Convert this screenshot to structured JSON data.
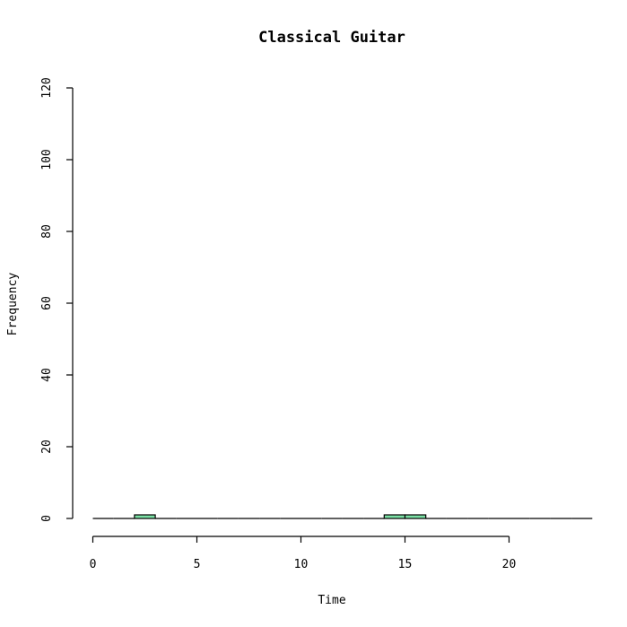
{
  "chart_data": {
    "type": "bar",
    "title": "Classical Guitar",
    "xlabel": "Time",
    "ylabel": "Frequency",
    "xlim": [
      0,
      24
    ],
    "ylim": [
      0,
      120
    ],
    "x_ticks": [
      "0",
      "5",
      "10",
      "15",
      "20"
    ],
    "y_ticks": [
      "0",
      "20",
      "40",
      "60",
      "80",
      "100",
      "120"
    ],
    "bin_width": 1,
    "bin_starts": [
      0,
      1,
      2,
      3,
      4,
      5,
      6,
      7,
      8,
      9,
      10,
      11,
      12,
      13,
      14,
      15,
      16,
      17,
      18,
      19,
      20,
      21,
      22,
      23
    ],
    "values": [
      0,
      0,
      1,
      0,
      0,
      0,
      0,
      0,
      0,
      0,
      0,
      0,
      0,
      0,
      1,
      1,
      0,
      0,
      0,
      0,
      0,
      0,
      0,
      0
    ],
    "bar_color": "#7be0a5",
    "border_color": "#000000",
    "grid": false,
    "legend": "none"
  }
}
